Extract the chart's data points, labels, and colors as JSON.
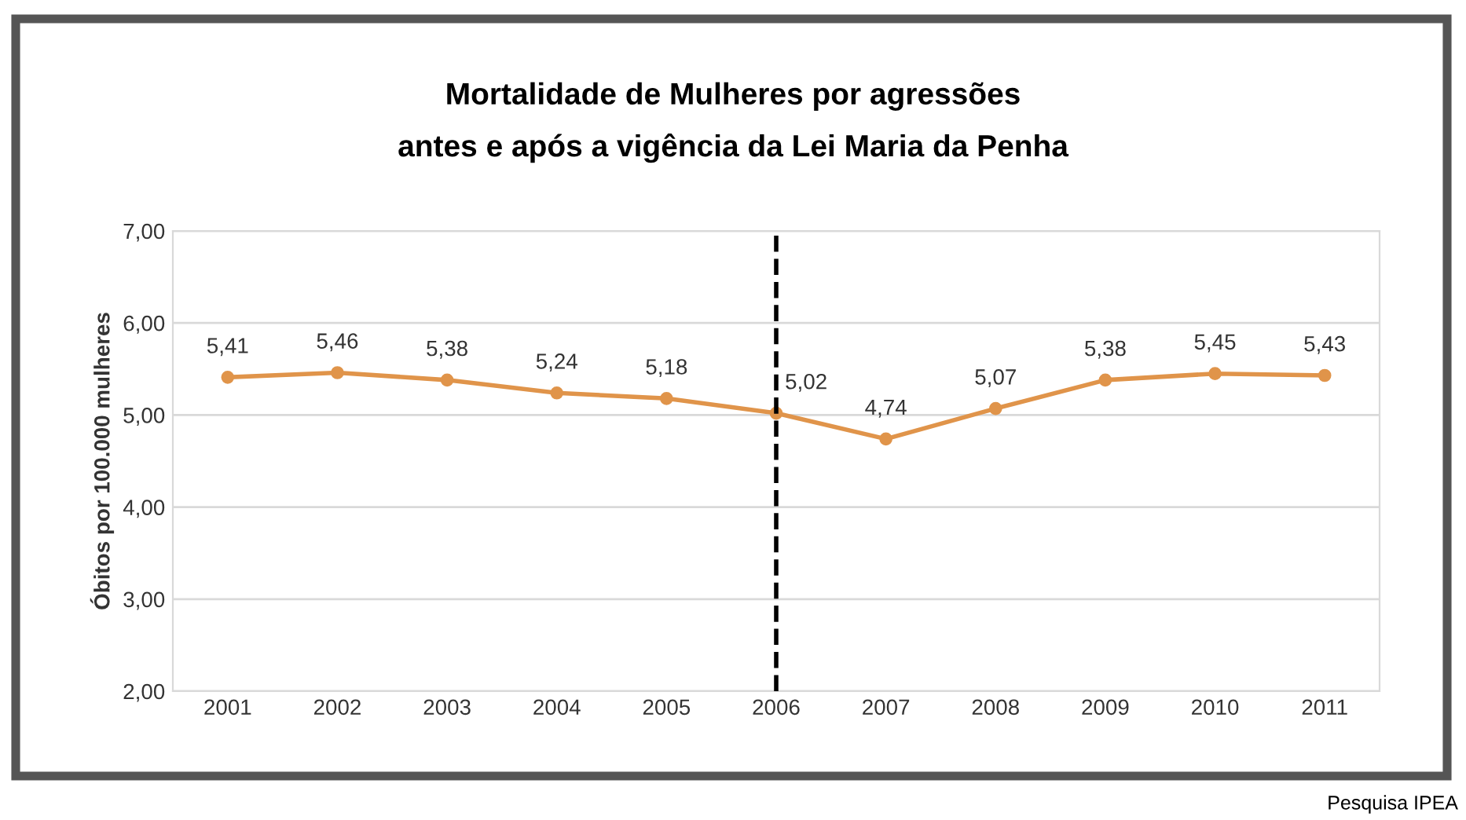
{
  "chart_data": {
    "type": "line",
    "title": "Mortalidade de Mulheres por agressões\nantes e após a vigência da Lei Maria da Penha",
    "ylabel": "Óbitos por 100.000 mulheres",
    "categories": [
      "2001",
      "2002",
      "2003",
      "2004",
      "2005",
      "2006",
      "2007",
      "2008",
      "2009",
      "2010",
      "2011"
    ],
    "series": [
      {
        "color": "#e0944a",
        "values": [
          5.41,
          5.46,
          5.38,
          5.24,
          5.18,
          5.02,
          4.74,
          5.07,
          5.38,
          5.45,
          5.43
        ],
        "value_labels": [
          "5,41",
          "5,46",
          "5,38",
          "5,24",
          "5,18",
          "5,02",
          "4,74",
          "5,07",
          "5,38",
          "5,45",
          "5,43"
        ]
      }
    ],
    "ylim": [
      2,
      7
    ],
    "yticks": [
      {
        "value": 2,
        "label": "2,00"
      },
      {
        "value": 3,
        "label": "3,00"
      },
      {
        "value": 4,
        "label": "4,00"
      },
      {
        "value": 5,
        "label": "5,00"
      },
      {
        "value": 6,
        "label": "6,00"
      },
      {
        "value": 7,
        "label": "7,00"
      }
    ],
    "grid": "y",
    "marker": "circle",
    "line_style": "solid",
    "ref_lines": [
      {
        "axis": "x",
        "value": "2006",
        "color": "#000000",
        "line_style": "dashed"
      }
    ],
    "annotations": [
      "Pesquisa IPEA"
    ]
  }
}
